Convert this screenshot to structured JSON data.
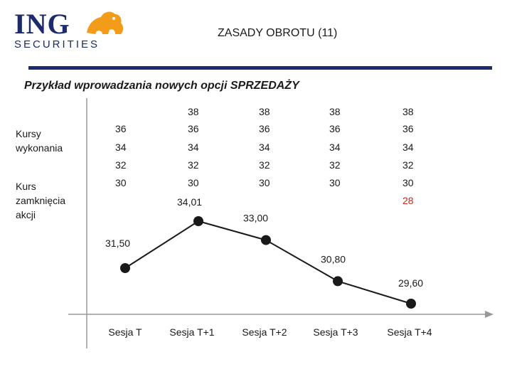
{
  "header": {
    "logo_text": "ING",
    "logo_sub": "SECURITIES",
    "title": "ZASADY OBROTU (11)"
  },
  "subtitle": "Przykład wprowadzania nowych opcji SPRZEDAŻY",
  "labels": {
    "strikes": "Kursy wykonania",
    "close": "Kurs zamknięcia akcji"
  },
  "chart_data": {
    "type": "line",
    "categories": [
      "Sesja T",
      "Sesja T+1",
      "Sesja T+2",
      "Sesja T+3",
      "Sesja T+4"
    ],
    "series": [
      {
        "values": [
          31.5,
          34.01,
          33.0,
          30.8,
          29.6
        ]
      }
    ],
    "point_labels": [
      "31,50",
      "34,01",
      "33,00",
      "30,80",
      "29,60"
    ],
    "strikes": [
      [
        "36",
        "34",
        "32",
        "30"
      ],
      [
        "38",
        "36",
        "34",
        "32",
        "30"
      ],
      [
        "38",
        "36",
        "34",
        "32",
        "30"
      ],
      [
        "38",
        "36",
        "34",
        "32",
        "30"
      ],
      [
        "38",
        "36",
        "34",
        "32",
        "30",
        "28"
      ]
    ],
    "new_strike": "28",
    "colors": {
      "line": "#1a1a1a",
      "axis": "#999999",
      "new_strike": "#c8281e"
    }
  }
}
